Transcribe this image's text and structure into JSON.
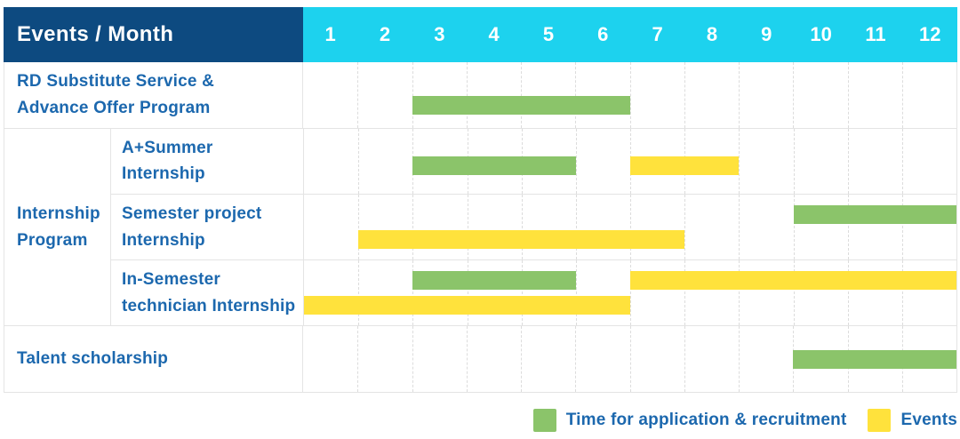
{
  "header": {
    "label": "Events / Month",
    "months": [
      "1",
      "2",
      "3",
      "4",
      "5",
      "6",
      "7",
      "8",
      "9",
      "10",
      "11",
      "12"
    ]
  },
  "labels": {
    "rows": [
      "RD Substitute Service &\nAdvance Offer Program",
      "A+Summer\nInternship",
      "Semester project\nInternship",
      "In-Semester\ntechnician Internship",
      "Talent scholarship"
    ],
    "group": "Internship\nProgram"
  },
  "legend": {
    "items": [
      {
        "label": "Time for application & recruitment",
        "color": "green"
      },
      {
        "label": "Events",
        "color": "yellow"
      }
    ]
  },
  "colors": {
    "header-bg": "#0d4a80",
    "months-bg": "#1dd2ee",
    "green": "#8bc46a",
    "yellow": "#ffe23c",
    "text-blue": "#1c68ae",
    "grid-line": "#dcdcdc",
    "row-border": "#e4e4e4"
  },
  "chart_data": {
    "type": "gantt",
    "title": "Events / Month",
    "x_axis": {
      "unit": "month",
      "ticks": [
        1,
        2,
        3,
        4,
        5,
        6,
        7,
        8,
        9,
        10,
        11,
        12
      ]
    },
    "series_legend": [
      "Time for application & recruitment",
      "Events"
    ],
    "rows": [
      {
        "label": "RD Substitute Service & Advance Offer Program",
        "group": null,
        "bars": [
          {
            "series": "Time for application & recruitment",
            "color": "green",
            "start_month": 3,
            "end_month": 6,
            "lane": "low"
          }
        ]
      },
      {
        "label": "A+Summer Internship",
        "group": "Internship Program",
        "bars": [
          {
            "series": "Time for application & recruitment",
            "color": "green",
            "start_month": 3,
            "end_month": 5,
            "lane": "mid"
          },
          {
            "series": "Events",
            "color": "yellow",
            "start_month": 7,
            "end_month": 8,
            "lane": "mid"
          }
        ]
      },
      {
        "label": "Semester project Internship",
        "group": "Internship Program",
        "bars": [
          {
            "series": "Time for application & recruitment",
            "color": "green",
            "start_month": 10,
            "end_month": 12,
            "lane": "top"
          },
          {
            "series": "Events",
            "color": "yellow",
            "start_month": 2,
            "end_month": 7,
            "lane": "bottom"
          }
        ]
      },
      {
        "label": "In-Semester technician Internship",
        "group": "Internship Program",
        "bars": [
          {
            "series": "Time for application & recruitment",
            "color": "green",
            "start_month": 3,
            "end_month": 5,
            "lane": "top"
          },
          {
            "series": "Events",
            "color": "yellow",
            "start_month": 7,
            "end_month": 12,
            "lane": "top"
          },
          {
            "series": "Events",
            "color": "yellow",
            "start_month": 1,
            "end_month": 6,
            "lane": "bottom"
          }
        ]
      },
      {
        "label": "Talent scholarship",
        "group": null,
        "bars": [
          {
            "series": "Time for application & recruitment",
            "color": "green",
            "start_month": 10,
            "end_month": 12,
            "lane": "center"
          }
        ]
      }
    ]
  }
}
